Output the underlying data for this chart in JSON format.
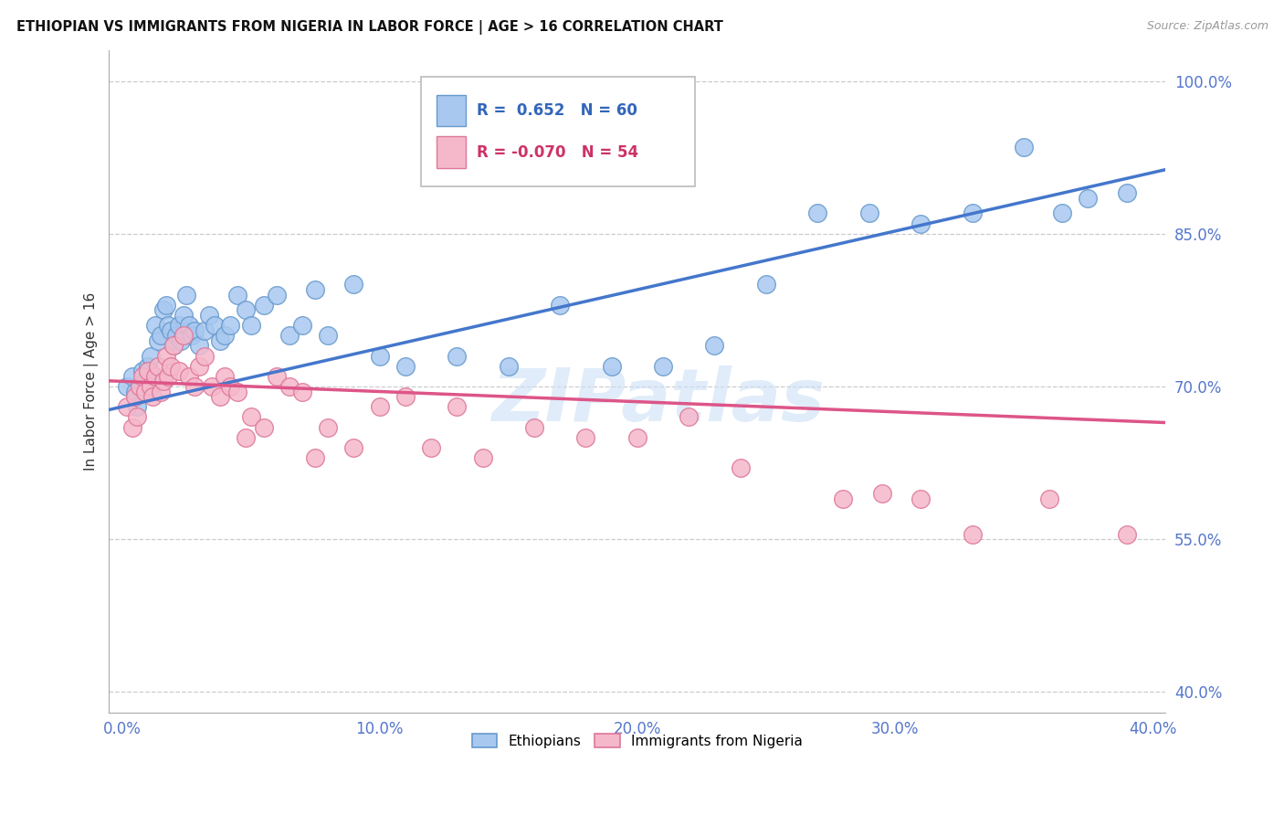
{
  "title": "ETHIOPIAN VS IMMIGRANTS FROM NIGERIA IN LABOR FORCE | AGE > 16 CORRELATION CHART",
  "source": "Source: ZipAtlas.com",
  "ylabel": "In Labor Force | Age > 16",
  "background_color": "#ffffff",
  "grid_color": "#cccccc",
  "xmin": -0.005,
  "xmax": 0.405,
  "ymin": 0.38,
  "ymax": 1.03,
  "ytick_labels": [
    "40.0%",
    "55.0%",
    "70.0%",
    "85.0%",
    "100.0%"
  ],
  "ytick_values": [
    0.4,
    0.55,
    0.7,
    0.85,
    1.0
  ],
  "xtick_labels": [
    "0.0%",
    "10.0%",
    "20.0%",
    "30.0%",
    "40.0%"
  ],
  "xtick_values": [
    0.0,
    0.1,
    0.2,
    0.3,
    0.4
  ],
  "ethiopian_color": "#a8c8f0",
  "nigerian_color": "#f5b8cb",
  "ethiopian_edge": "#6699cc",
  "nigerian_edge": "#dd7799",
  "line_blue": "#4477cc",
  "line_pink": "#dd5588",
  "legend_R_blue": "0.652",
  "legend_N_blue": "60",
  "legend_R_pink": "-0.070",
  "legend_N_pink": "54",
  "watermark": "ZIPatlas",
  "ethiopians_scatter_x": [
    0.002,
    0.004,
    0.005,
    0.006,
    0.008,
    0.009,
    0.01,
    0.01,
    0.011,
    0.012,
    0.013,
    0.014,
    0.015,
    0.016,
    0.017,
    0.018,
    0.019,
    0.02,
    0.021,
    0.022,
    0.023,
    0.024,
    0.025,
    0.026,
    0.027,
    0.028,
    0.03,
    0.032,
    0.034,
    0.036,
    0.038,
    0.04,
    0.042,
    0.045,
    0.048,
    0.05,
    0.055,
    0.06,
    0.065,
    0.07,
    0.075,
    0.08,
    0.09,
    0.1,
    0.11,
    0.13,
    0.15,
    0.17,
    0.19,
    0.21,
    0.23,
    0.25,
    0.27,
    0.29,
    0.31,
    0.33,
    0.35,
    0.365,
    0.375,
    0.39
  ],
  "ethiopians_scatter_y": [
    0.7,
    0.71,
    0.695,
    0.68,
    0.715,
    0.705,
    0.72,
    0.695,
    0.73,
    0.71,
    0.76,
    0.745,
    0.75,
    0.775,
    0.78,
    0.76,
    0.755,
    0.74,
    0.75,
    0.76,
    0.745,
    0.77,
    0.79,
    0.76,
    0.75,
    0.755,
    0.74,
    0.755,
    0.77,
    0.76,
    0.745,
    0.75,
    0.76,
    0.79,
    0.775,
    0.76,
    0.78,
    0.79,
    0.75,
    0.76,
    0.795,
    0.75,
    0.8,
    0.73,
    0.72,
    0.73,
    0.72,
    0.78,
    0.72,
    0.72,
    0.74,
    0.8,
    0.87,
    0.87,
    0.86,
    0.87,
    0.935,
    0.87,
    0.885,
    0.89
  ],
  "nigerians_scatter_x": [
    0.002,
    0.004,
    0.005,
    0.006,
    0.007,
    0.008,
    0.009,
    0.01,
    0.011,
    0.012,
    0.013,
    0.014,
    0.015,
    0.016,
    0.017,
    0.018,
    0.019,
    0.02,
    0.022,
    0.024,
    0.026,
    0.028,
    0.03,
    0.032,
    0.035,
    0.038,
    0.04,
    0.042,
    0.045,
    0.048,
    0.05,
    0.055,
    0.06,
    0.065,
    0.07,
    0.075,
    0.08,
    0.09,
    0.1,
    0.11,
    0.12,
    0.13,
    0.14,
    0.16,
    0.18,
    0.2,
    0.22,
    0.24,
    0.28,
    0.295,
    0.31,
    0.33,
    0.36,
    0.39
  ],
  "nigerians_scatter_y": [
    0.68,
    0.66,
    0.69,
    0.67,
    0.7,
    0.71,
    0.695,
    0.715,
    0.7,
    0.69,
    0.71,
    0.72,
    0.695,
    0.705,
    0.73,
    0.71,
    0.72,
    0.74,
    0.715,
    0.75,
    0.71,
    0.7,
    0.72,
    0.73,
    0.7,
    0.69,
    0.71,
    0.7,
    0.695,
    0.65,
    0.67,
    0.66,
    0.71,
    0.7,
    0.695,
    0.63,
    0.66,
    0.64,
    0.68,
    0.69,
    0.64,
    0.68,
    0.63,
    0.66,
    0.65,
    0.65,
    0.67,
    0.62,
    0.59,
    0.595,
    0.59,
    0.555,
    0.59,
    0.555
  ]
}
